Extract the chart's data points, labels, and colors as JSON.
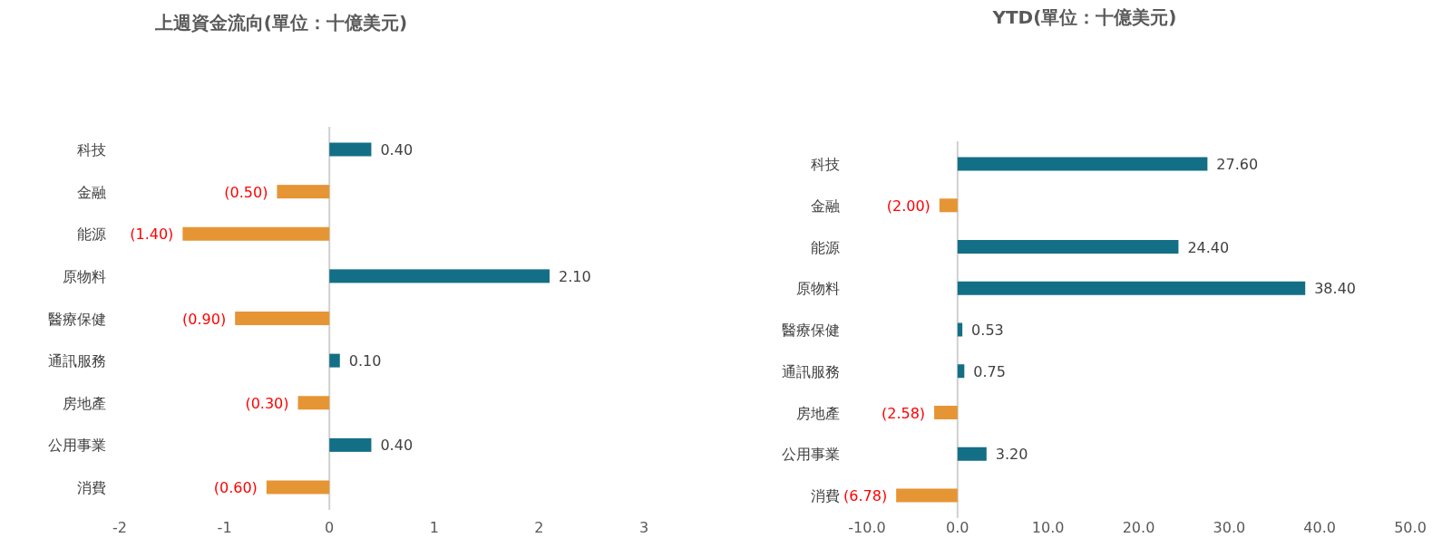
{
  "chart_data": [
    {
      "type": "bar",
      "orientation": "horizontal",
      "title": "上週資金流向(單位：十億美元)",
      "categories": [
        "科技",
        "金融",
        "能源",
        "原物料",
        "醫療保健",
        "通訊服務",
        "房地產",
        "公用事業",
        "消費"
      ],
      "values": [
        0.4,
        -0.5,
        -1.4,
        2.1,
        -0.9,
        0.1,
        -0.3,
        0.4,
        -0.6
      ],
      "colors": [
        "#136f85",
        "#e69535",
        "#e69535",
        "#136f85",
        "#e69535",
        "#136f85",
        "#e69535",
        "#136f85",
        "#e69535"
      ],
      "value_labels": [
        "0.40",
        "(0.50)",
        "(1.40)",
        "2.10",
        "(0.90)",
        "0.10",
        "(0.30)",
        "0.40",
        "(0.60)"
      ],
      "xlim": [
        -2,
        3
      ],
      "xticks": [
        -2,
        -1,
        0,
        1,
        2,
        3
      ]
    },
    {
      "type": "bar",
      "orientation": "horizontal",
      "title": "YTD(單位：十億美元)",
      "categories": [
        "科技",
        "金融",
        "能源",
        "原物料",
        "醫療保健",
        "通訊服務",
        "房地產",
        "公用事業",
        "消費"
      ],
      "values": [
        27.6,
        -2.0,
        24.4,
        38.4,
        0.53,
        0.75,
        -2.58,
        3.2,
        -6.78
      ],
      "colors": [
        "#136f85",
        "#e69535",
        "#136f85",
        "#136f85",
        "#136f85",
        "#136f85",
        "#e69535",
        "#136f85",
        "#e69535"
      ],
      "value_labels": [
        "27.60",
        "(2.00)",
        "24.40",
        "38.40",
        "0.53",
        "0.75",
        "(2.58)",
        "3.20",
        "(6.78)"
      ],
      "xlim": [
        -10,
        50
      ],
      "xticks": [
        {
          "value": -10,
          "label": "-10.0"
        },
        {
          "value": 0,
          "label": "0.0"
        },
        {
          "value": 10,
          "label": "10.0"
        },
        {
          "value": 20,
          "label": "20.0"
        },
        {
          "value": 30,
          "label": "30.0"
        },
        {
          "value": 40,
          "label": "40.0"
        },
        {
          "value": 50,
          "label": "50.0"
        }
      ]
    }
  ]
}
